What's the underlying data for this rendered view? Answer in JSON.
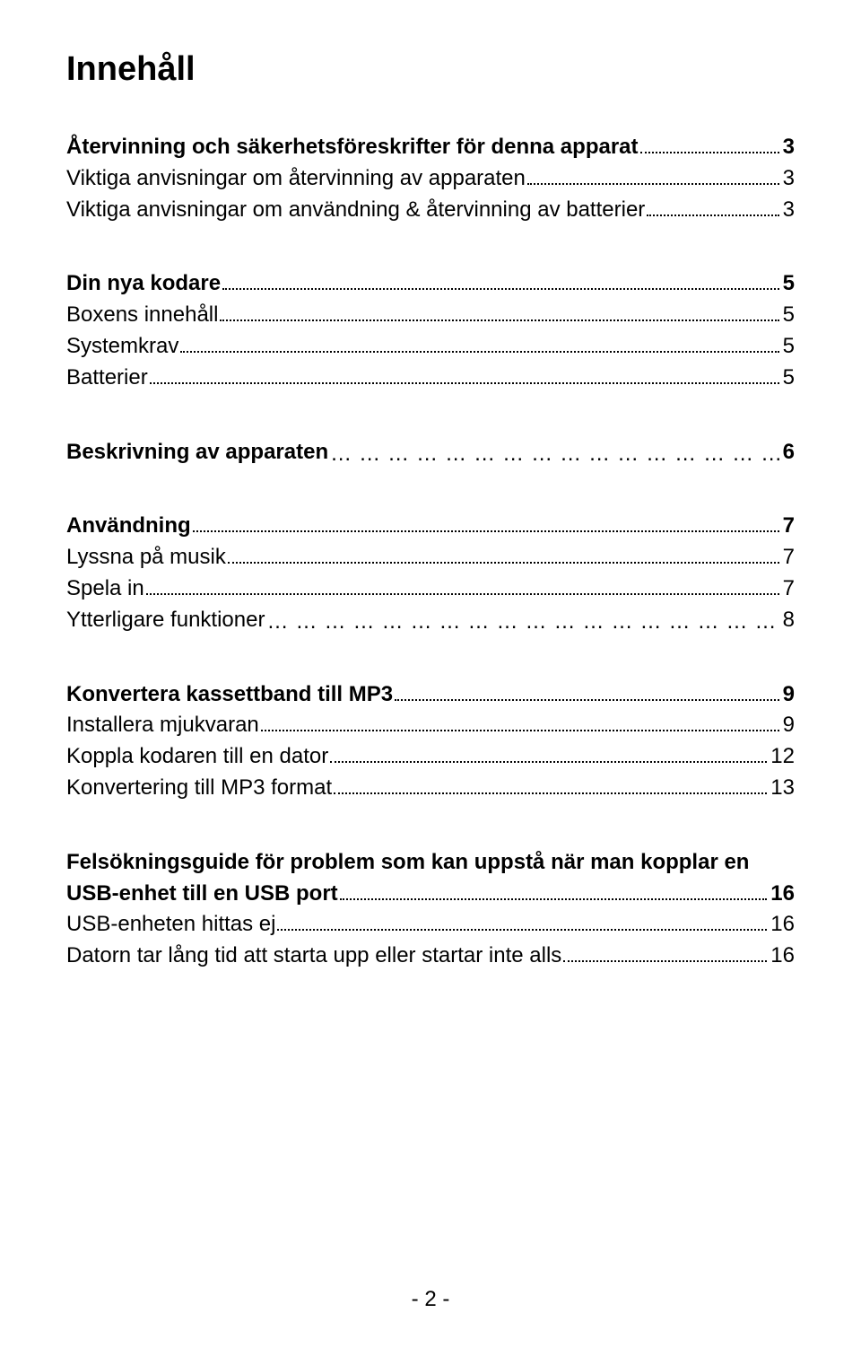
{
  "title": "Innehåll",
  "pageNumberLabel": "- 2 -",
  "sections": [
    {
      "rows": [
        {
          "label": "Återvinning och säkerhetsföreskrifter för denna apparat",
          "page": "3",
          "bold": true,
          "leader": "dots"
        },
        {
          "label": "Viktiga anvisningar om återvinning av apparaten",
          "page": "3",
          "bold": false,
          "leader": "dots"
        },
        {
          "label": "Viktiga anvisningar om användning & återvinning av batterier",
          "page": "3",
          "bold": false,
          "leader": "dots"
        }
      ]
    },
    {
      "rows": [
        {
          "label": "Din nya kodare",
          "page": "5",
          "bold": true,
          "leader": "dots"
        },
        {
          "label": "Boxens innehåll",
          "page": "5",
          "bold": false,
          "leader": "dots"
        },
        {
          "label": "Systemkrav",
          "page": "5",
          "bold": false,
          "leader": "dots"
        },
        {
          "label": "Batterier",
          "page": "5",
          "bold": false,
          "leader": "dots"
        }
      ]
    },
    {
      "rows": [
        {
          "label": "Beskrivning av apparaten",
          "page": "6",
          "bold": true,
          "leader": "spaced"
        }
      ]
    },
    {
      "rows": [
        {
          "label": "Användning",
          "page": "7",
          "bold": true,
          "leader": "dots"
        },
        {
          "label": "Lyssna på musik",
          "page": "7",
          "bold": false,
          "leader": "dots"
        },
        {
          "label": "Spela in",
          "page": "7",
          "bold": false,
          "leader": "dots"
        },
        {
          "label": "Ytterligare funktioner",
          "page": " 8",
          "bold": false,
          "leader": "spaced"
        }
      ]
    },
    {
      "rows": [
        {
          "label": "Konvertera kassettband till MP3",
          "page": "9",
          "bold": true,
          "leader": "dots"
        },
        {
          "label": "Installera mjukvaran",
          "page": "9",
          "bold": false,
          "leader": "dots"
        },
        {
          "label": "Koppla kodaren till en dator",
          "page": "12",
          "bold": false,
          "leader": "dots"
        },
        {
          "label": "Konvertering till MP3 format",
          "page": "13",
          "bold": false,
          "leader": "dots"
        }
      ]
    },
    {
      "rows": [
        {
          "label": "Felsökningsguide för problem som kan uppstå när man kopplar en",
          "page": "",
          "bold": true,
          "leader": "none"
        },
        {
          "label": "USB-enhet till en USB port",
          "page": "16",
          "bold": true,
          "leader": "dots"
        },
        {
          "label": "USB-enheten hittas ej",
          "page": "16",
          "bold": false,
          "leader": "dots"
        },
        {
          "label": "Datorn tar lång tid att starta upp eller startar inte alls",
          "page": "16",
          "bold": false,
          "leader": "dots"
        }
      ]
    }
  ]
}
